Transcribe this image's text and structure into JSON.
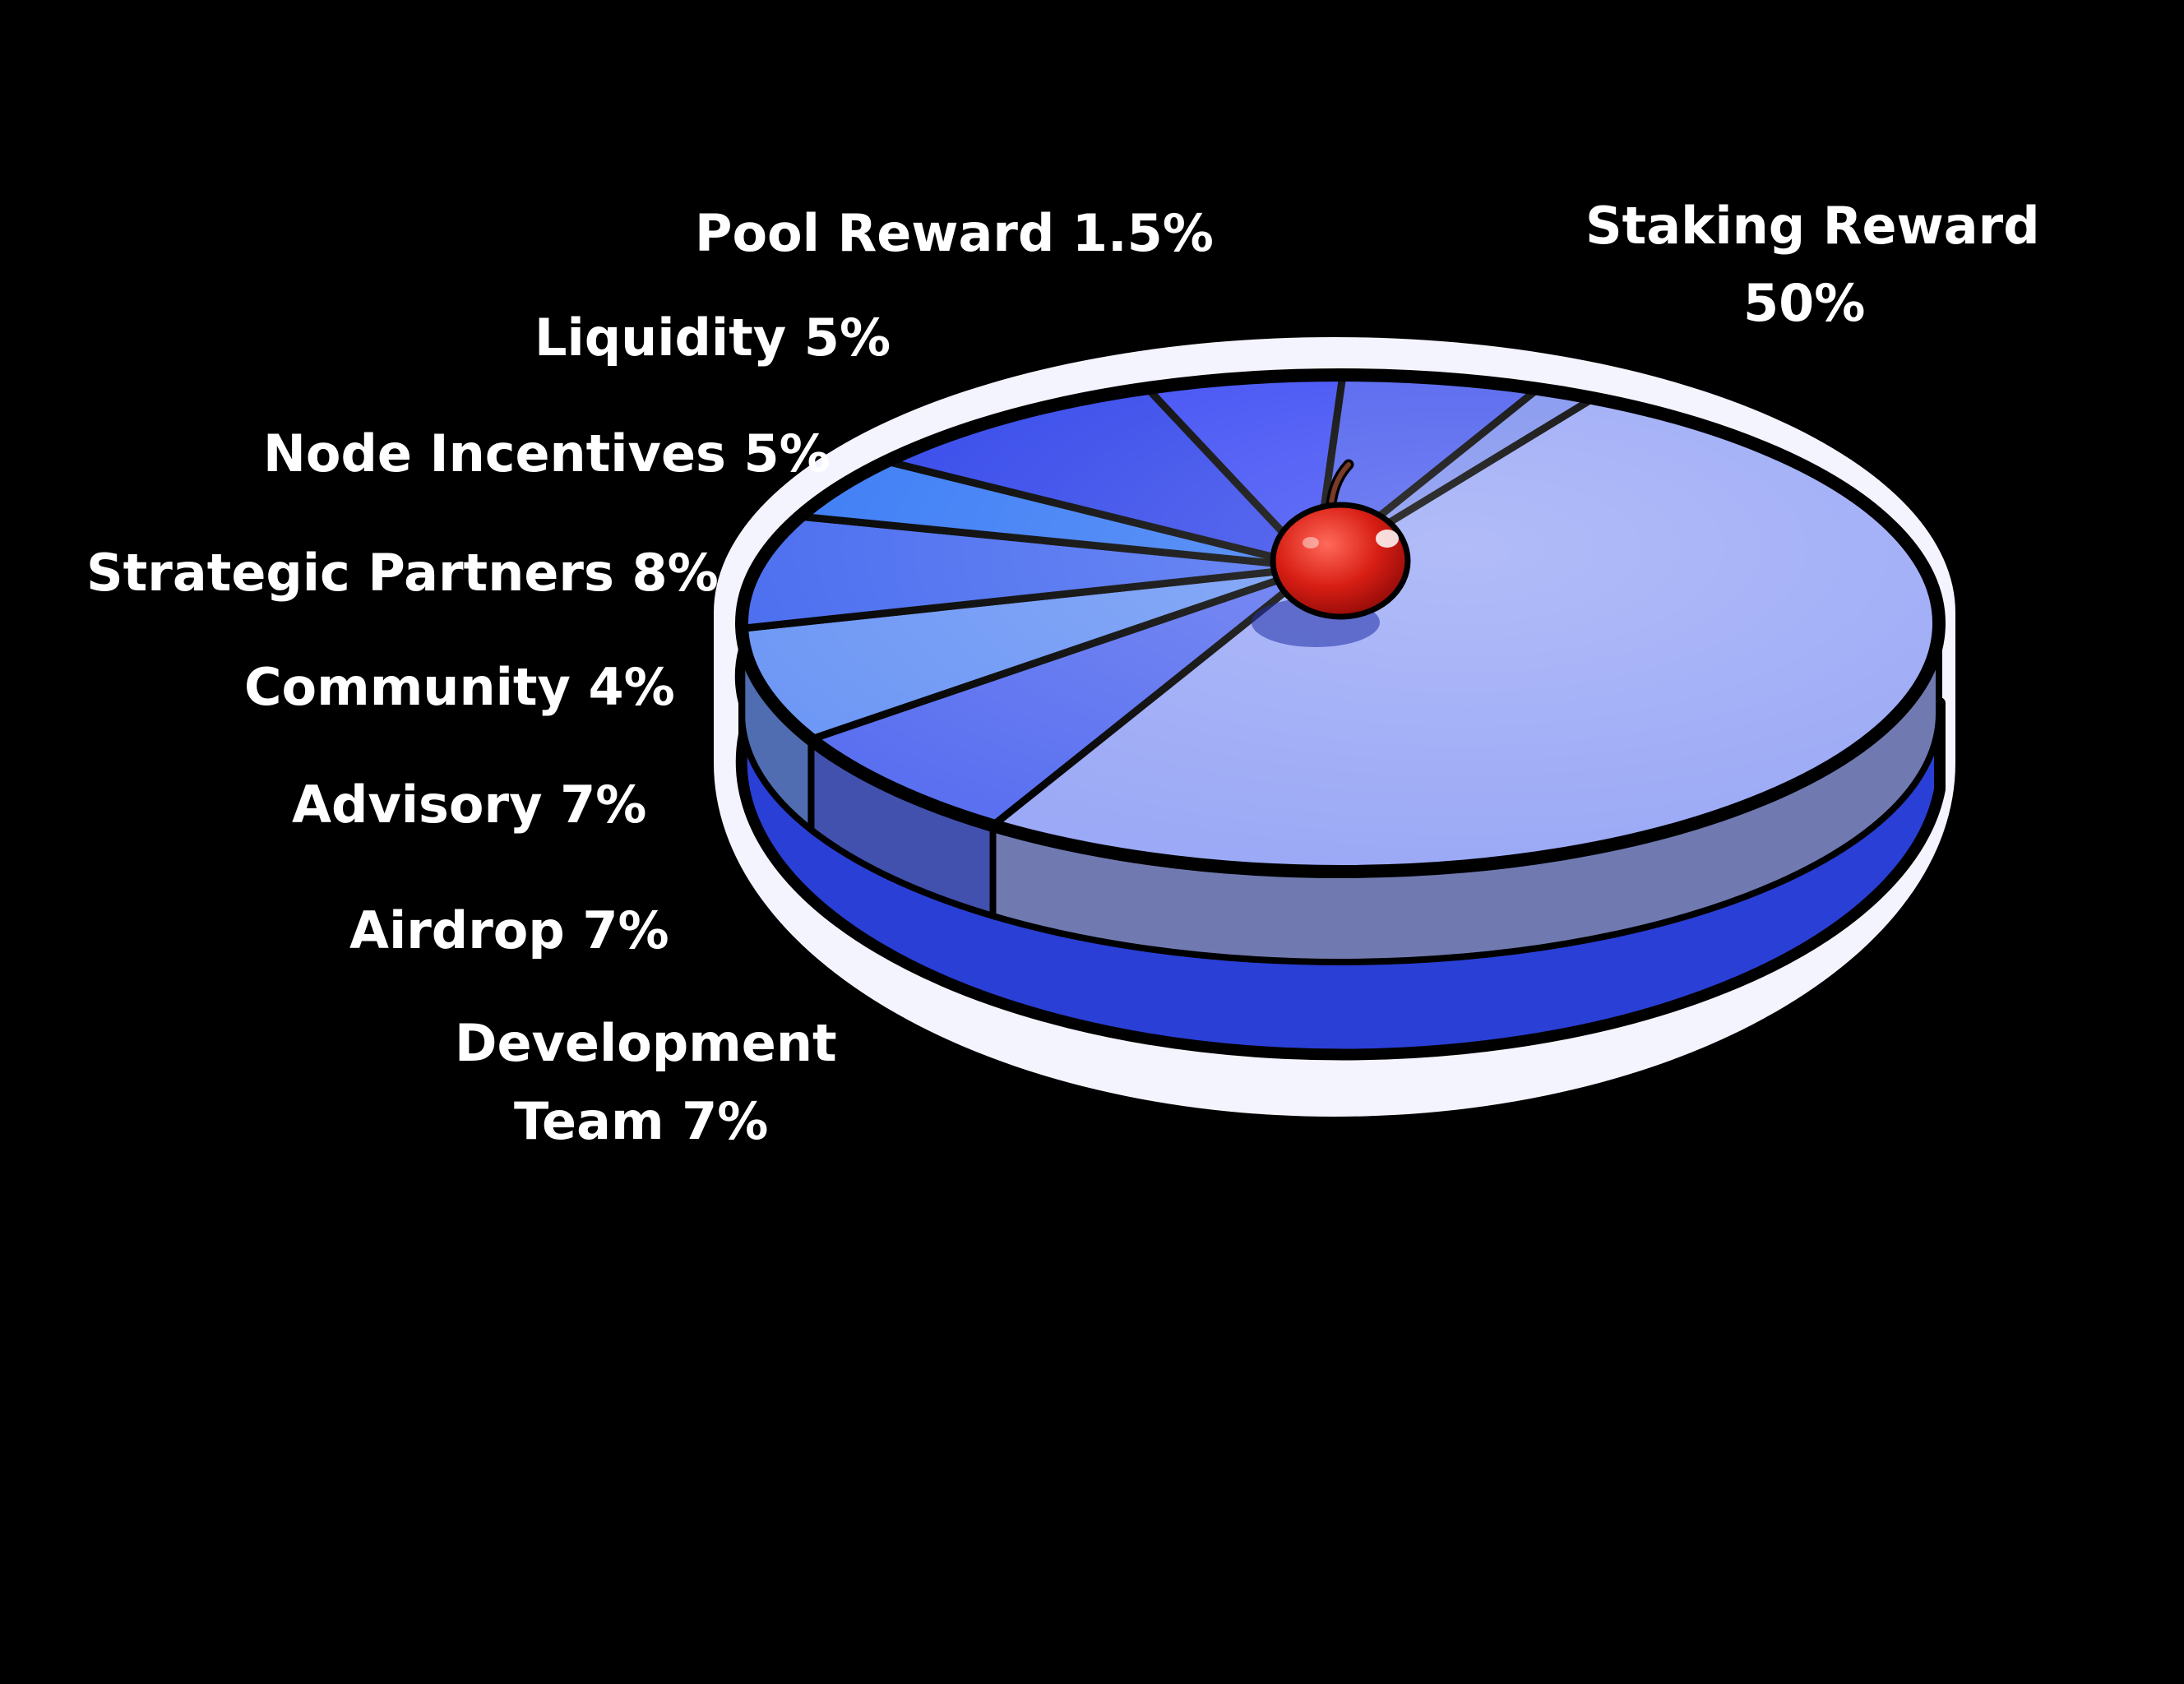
{
  "chart_data": {
    "type": "pie",
    "title": "",
    "slices": [
      {
        "label": "Staking Reward",
        "value": 50,
        "pct_text": "50%",
        "color": "#9ba9f6"
      },
      {
        "label": "Development Team",
        "value": 7,
        "pct_text": "7%",
        "color": "#5a70f0"
      },
      {
        "label": "Airdrop",
        "value": 7,
        "pct_text": "7%",
        "color": "#6e98f5"
      },
      {
        "label": "Advisory",
        "value": 7,
        "pct_text": "7%",
        "color": "#4b6ef0"
      },
      {
        "label": "Community",
        "value": 4,
        "pct_text": "4%",
        "color": "#3b7cf5"
      },
      {
        "label": "Strategic Partners",
        "value": 8,
        "pct_text": "8%",
        "color": "#3347ea"
      },
      {
        "label": "Node Incentives",
        "value": 5,
        "pct_text": "5%",
        "color": "#3d4cf4"
      },
      {
        "label": "Liquidity",
        "value": 5,
        "pct_text": "5%",
        "color": "#4d5fee"
      },
      {
        "label": "Pool Reward",
        "value": 1.5,
        "pct_text": "1.5%",
        "color": "#7f91ee"
      }
    ]
  },
  "labels": {
    "pool_reward": "Pool Reward 1.5%",
    "liquidity": "Liquidity 5%",
    "node_incentives": "Node Incentives 5%",
    "strategic_partners": "Strategic Partners 8%",
    "community": "Community 4%",
    "advisory": "Advisory 7%",
    "airdrop": "Airdrop 7%",
    "development_line1": "Development",
    "development_line2": "Team 7%",
    "staking_line1": "Staking Reward",
    "staking_line2": "50%"
  },
  "colors": {
    "background": "#000000",
    "outline": "#000000",
    "halo": "#f4f4ff",
    "rim_left": "#1f33cc",
    "rim_right": "#4153dd",
    "cherry": "#d81e14"
  },
  "icons": {
    "cherry": "cherry-icon"
  }
}
